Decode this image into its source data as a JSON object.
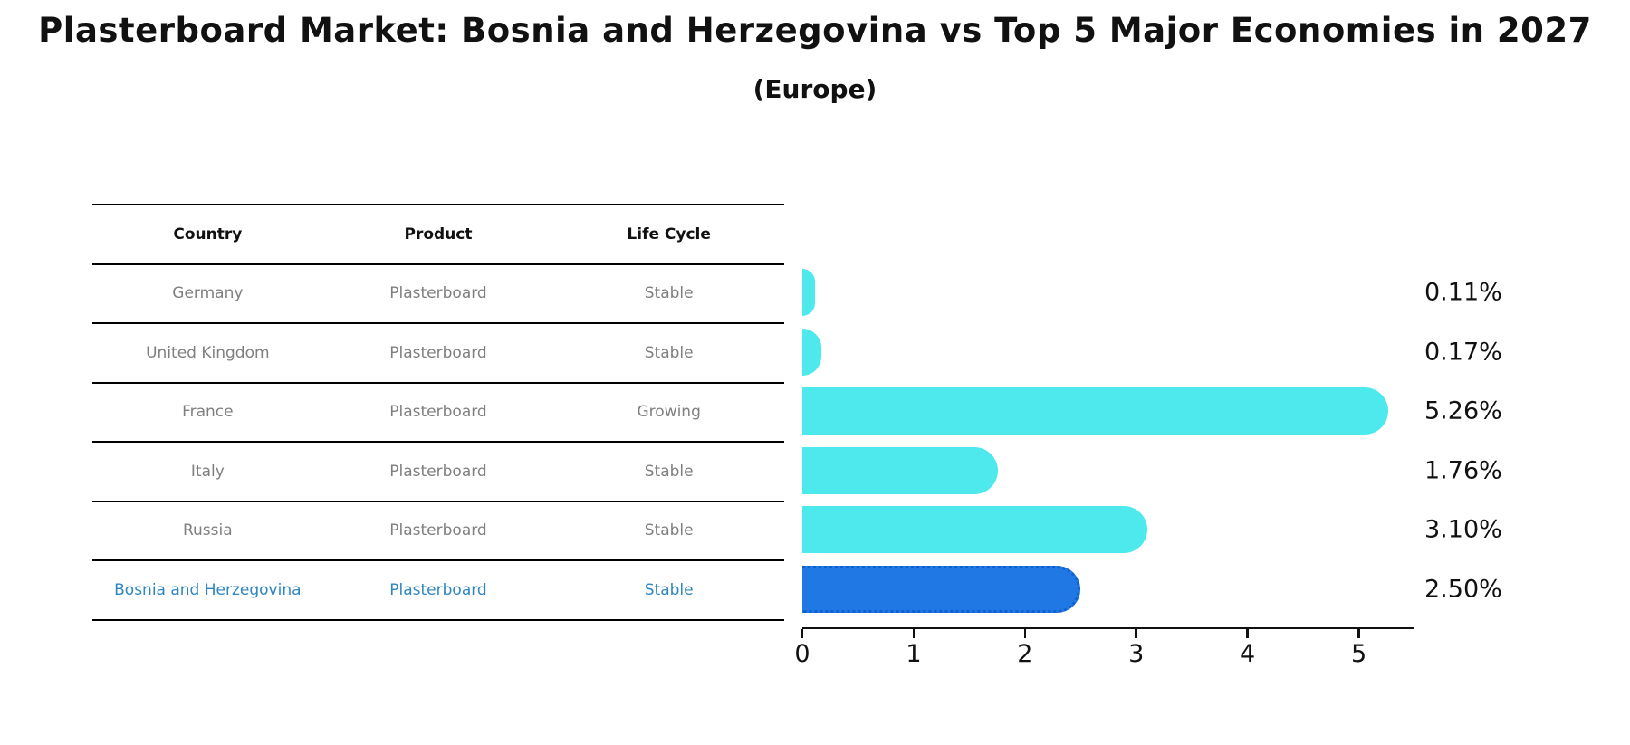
{
  "title": "Plasterboard Market: Bosnia and Herzegovina vs Top 5 Major Economies in 2027",
  "subtitle": "(Europe)",
  "table": {
    "headers": [
      "Country",
      "Product",
      "Life Cycle"
    ],
    "rows": [
      {
        "country": "Germany",
        "product": "Plasterboard",
        "life_cycle": "Stable",
        "highlighted": false
      },
      {
        "country": "United Kingdom",
        "product": "Plasterboard",
        "life_cycle": "Stable",
        "highlighted": false
      },
      {
        "country": "France",
        "product": "Plasterboard",
        "life_cycle": "Growing",
        "highlighted": false
      },
      {
        "country": "Italy",
        "product": "Plasterboard",
        "life_cycle": "Stable",
        "highlighted": false
      },
      {
        "country": "Russia",
        "product": "Plasterboard",
        "life_cycle": "Stable",
        "highlighted": false
      },
      {
        "country": "Bosnia and Herzegovina",
        "product": "Plasterboard",
        "life_cycle": "Stable",
        "highlighted": true
      }
    ]
  },
  "chart_data": {
    "type": "bar",
    "orientation": "horizontal",
    "title": "Plasterboard Market: Bosnia and Herzegovina vs Top 5 Major Economies in 2027 (Europe)",
    "categories": [
      "Germany",
      "United Kingdom",
      "France",
      "Italy",
      "Russia",
      "Bosnia and Herzegovina"
    ],
    "values": [
      0.11,
      0.17,
      5.26,
      1.76,
      3.1,
      2.5
    ],
    "value_labels": [
      "0.11%",
      "0.17%",
      "5.26%",
      "1.76%",
      "3.10%",
      "2.50%"
    ],
    "xlabel": "",
    "ylabel": "",
    "xlim": [
      0,
      5.5
    ],
    "xticks": [
      0,
      1,
      2,
      3,
      4,
      5
    ],
    "grid": false,
    "legend": "none",
    "highlight_index": 5
  },
  "colors": {
    "bar_cyan": "#4DE9EC",
    "bar_blue": "#1F78E4",
    "bar_blue_edge": "#0E5FD0",
    "highlight_text": "#2E86C1",
    "cell_text": "#7F7F7F",
    "header_text": "#111111",
    "axis": "#111111"
  }
}
